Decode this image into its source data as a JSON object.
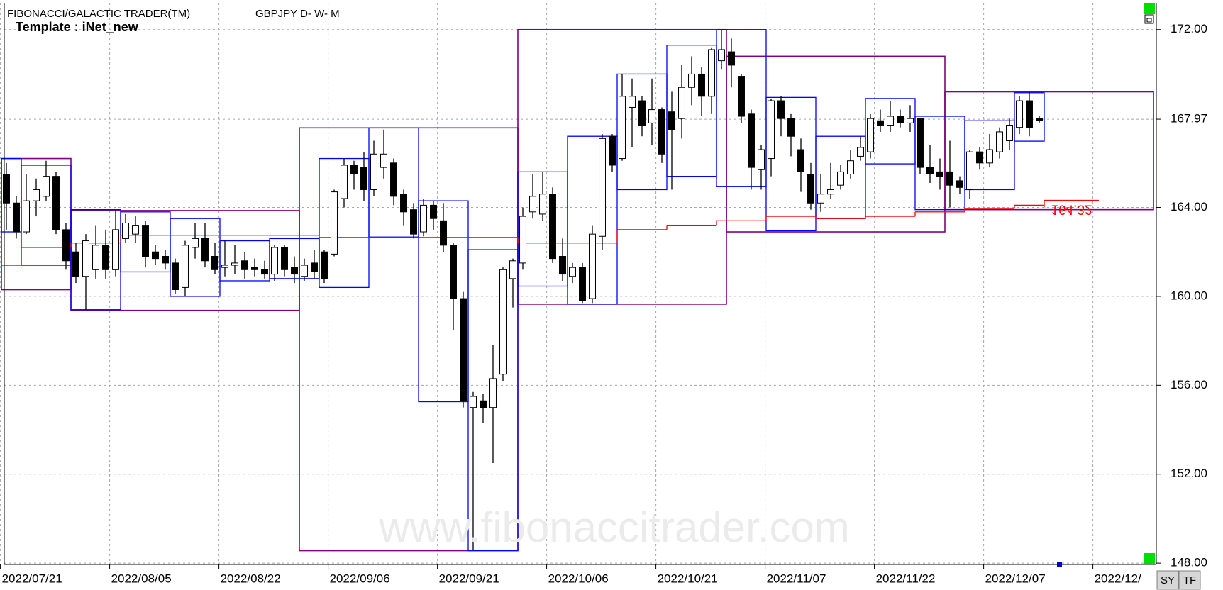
{
  "chart_data": {
    "type": "candlestick",
    "title": "FIBONACCI/GALACTIC TRADER(TM)",
    "subtitle": "GBPJPY D- W- M",
    "template_label": "Template : iNet_new",
    "watermark": "www.fibonaccitrader.com",
    "categories": [
      "2022/07/21",
      null,
      null,
      null,
      null,
      null,
      null,
      null,
      null,
      null,
      null,
      "2022/08/05",
      null,
      null,
      null,
      null,
      null,
      null,
      null,
      null,
      null,
      null,
      "2022/08/22",
      null,
      null,
      null,
      null,
      null,
      null,
      null,
      null,
      null,
      null,
      "2022/09/06",
      null,
      null,
      null,
      null,
      null,
      null,
      null,
      null,
      null,
      null,
      "2022/09/21",
      null,
      null,
      null,
      null,
      null,
      null,
      null,
      null,
      null,
      null,
      "2022/10/06",
      null,
      null,
      null,
      null,
      null,
      null,
      null,
      null,
      null,
      null,
      "2022/10/21",
      null,
      null,
      null,
      null,
      null,
      null,
      null,
      null,
      null,
      null,
      "2022/11/07",
      null,
      null,
      null,
      null,
      null,
      null,
      null,
      null,
      null,
      null,
      "2022/11/22",
      null,
      null,
      null,
      null,
      null,
      null,
      null,
      null,
      null,
      null,
      "2022/12/07",
      null,
      null,
      null,
      null,
      null,
      null,
      null,
      null,
      null,
      null,
      "2022/12/",
      null,
      null,
      null,
      null,
      null
    ],
    "open": [
      165.5,
      164.2,
      162.9,
      164.3,
      164.5,
      165.4,
      163.0,
      162.0,
      160.9,
      161.2,
      162.3,
      161.2,
      162.6,
      162.8,
      163.2,
      162.0,
      161.8,
      161.5,
      160.4,
      162.2,
      162.6,
      161.8,
      161.3,
      161.4,
      161.6,
      161.3,
      161.2,
      161.0,
      162.2,
      161.3,
      160.9,
      161.5,
      162.0,
      161.9,
      164.4,
      165.9,
      165.8,
      164.8,
      165.8,
      166.0,
      164.6,
      163.9,
      162.9,
      164.1,
      163.4,
      162.3,
      159.9,
      155.0,
      155.3,
      155.0,
      156.5,
      160.8,
      161.5,
      163.8,
      163.7,
      164.6,
      161.8,
      160.9,
      161.3,
      159.9,
      162.7,
      167.2,
      166.2,
      168.5,
      168.8,
      167.8,
      168.4,
      168.3,
      168.0,
      169.4,
      170.0,
      169.0,
      170.6,
      171.0,
      169.9,
      168.2,
      165.7,
      166.2,
      168.8,
      168.0,
      166.6,
      165.5,
      164.2,
      164.6,
      165.0,
      165.5,
      166.3,
      166.5,
      167.9,
      167.7,
      168.1,
      167.8,
      168.0,
      165.8,
      165.6,
      165.6,
      165.2,
      164.8,
      166.5,
      166.0,
      166.5,
      167.0,
      167.6,
      168.8,
      168.0,
      null,
      null,
      null,
      null,
      null,
      null,
      null,
      null,
      null,
      null,
      null
    ],
    "high": [
      166.0,
      164.5,
      165.5,
      165.3,
      166.1,
      165.6,
      163.3,
      162.4,
      162.8,
      163.2,
      163.0,
      163.9,
      163.7,
      163.6,
      163.4,
      162.3,
      162.1,
      161.7,
      162.5,
      163.3,
      163.3,
      162.4,
      162.5,
      162.3,
      162.0,
      161.7,
      161.6,
      162.3,
      162.3,
      161.8,
      161.7,
      162.1,
      162.1,
      164.8,
      166.2,
      166.1,
      166.5,
      167.0,
      167.5,
      166.2,
      164.8,
      164.2,
      164.4,
      164.3,
      164.2,
      162.4,
      160.2,
      155.7,
      155.6,
      157.8,
      161.3,
      161.7,
      164.0,
      165.5,
      165.6,
      164.9,
      162.6,
      161.5,
      161.5,
      163.2,
      167.3,
      167.3,
      170.0,
      169.8,
      169.0,
      169.8,
      168.5,
      169.2,
      170.4,
      170.8,
      170.3,
      171.2,
      172.0,
      171.6,
      170.0,
      168.4,
      166.8,
      168.9,
      169.0,
      168.2,
      167.1,
      166.0,
      165.5,
      166.0,
      165.9,
      166.6,
      167.2,
      168.2,
      168.4,
      168.8,
      168.4,
      168.6,
      168.0,
      166.8,
      166.2,
      167.0,
      165.4,
      166.6,
      166.7,
      167.3,
      167.6,
      168.0,
      169.0,
      169.2,
      168.1,
      null,
      null,
      null,
      null,
      null,
      null,
      null,
      null,
      null,
      null,
      null
    ],
    "low": [
      163.0,
      162.6,
      162.8,
      163.6,
      164.3,
      162.8,
      161.2,
      160.6,
      159.4,
      160.8,
      160.8,
      160.9,
      162.4,
      162.4,
      161.3,
      161.4,
      161.2,
      160.1,
      160.0,
      161.7,
      161.3,
      161.0,
      160.9,
      161.0,
      160.8,
      160.9,
      160.8,
      160.7,
      160.9,
      160.6,
      160.7,
      160.8,
      160.6,
      161.8,
      164.0,
      164.8,
      164.3,
      164.5,
      165.3,
      164.1,
      163.2,
      162.6,
      162.7,
      163.0,
      162.0,
      158.5,
      155.0,
      148.6,
      154.3,
      152.5,
      156.2,
      159.5,
      161.2,
      163.5,
      163.4,
      161.5,
      160.7,
      160.6,
      159.7,
      159.7,
      162.1,
      165.6,
      166.1,
      166.7,
      167.2,
      166.8,
      166.0,
      164.8,
      167.1,
      168.6,
      168.1,
      168.2,
      170.2,
      169.4,
      167.8,
      164.8,
      164.8,
      165.4,
      167.2,
      166.3,
      164.7,
      163.9,
      163.8,
      164.4,
      164.8,
      165.3,
      166.1,
      166.2,
      167.4,
      167.4,
      167.6,
      167.4,
      165.5,
      165.1,
      164.8,
      164.0,
      164.6,
      164.4,
      165.7,
      165.8,
      166.2,
      166.6,
      167.3,
      167.2,
      167.8,
      null,
      null,
      null,
      null,
      null,
      null,
      null,
      null,
      null,
      null,
      null
    ],
    "close": [
      164.2,
      162.9,
      164.3,
      164.8,
      165.4,
      163.0,
      161.6,
      160.9,
      162.5,
      162.3,
      161.2,
      163.0,
      163.3,
      163.2,
      161.8,
      161.7,
      161.5,
      160.3,
      162.3,
      162.6,
      161.6,
      161.2,
      161.4,
      161.5,
      161.2,
      161.2,
      161.0,
      162.2,
      161.2,
      161.0,
      161.4,
      161.1,
      160.8,
      164.7,
      165.9,
      165.5,
      164.8,
      166.4,
      166.4,
      164.5,
      163.8,
      162.8,
      164.1,
      163.5,
      162.3,
      159.9,
      155.3,
      155.5,
      155.0,
      156.3,
      161.2,
      161.6,
      163.6,
      164.5,
      164.6,
      161.7,
      161.0,
      161.3,
      159.8,
      162.8,
      167.1,
      165.9,
      169.0,
      169.0,
      167.7,
      168.4,
      166.4,
      167.5,
      169.4,
      170.0,
      169.0,
      171.1,
      171.1,
      170.4,
      168.1,
      165.8,
      166.6,
      168.8,
      168.0,
      167.2,
      165.6,
      164.2,
      164.6,
      164.8,
      165.6,
      166.1,
      166.7,
      168.0,
      167.7,
      168.1,
      167.8,
      168.0,
      165.8,
      165.5,
      165.4,
      165.0,
      164.9,
      166.5,
      166.0,
      166.6,
      167.4,
      167.7,
      168.8,
      167.6,
      167.9,
      null,
      null,
      null,
      null,
      null,
      null,
      null,
      null,
      null,
      null,
      null
    ],
    "up_color": "#ffffff",
    "down_color": "#000000",
    "monthly_boxes": {
      "color": "#800080",
      "ranges": [
        {
          "start": 0,
          "end": 6,
          "high": 166.2,
          "low": 160.3
        },
        {
          "start": 7,
          "end": 29,
          "high": 163.86,
          "low": 159.37
        },
        {
          "start": 30,
          "end": 51,
          "high": 167.58,
          "low": 148.56
        },
        {
          "start": 52,
          "end": 72,
          "high": 172.0,
          "low": 159.65
        },
        {
          "start": 73,
          "end": 94,
          "high": 170.8,
          "low": 162.9
        },
        {
          "start": 95,
          "end": 115,
          "high": 169.2,
          "low": 163.9
        }
      ]
    },
    "weekly_boxes": {
      "color": "#0000ff",
      "ranges": [
        {
          "start": 0,
          "end": 1,
          "high": 166.2,
          "low": 162.9
        },
        {
          "start": 2,
          "end": 6,
          "high": 165.9,
          "low": 161.4
        },
        {
          "start": 7,
          "end": 11,
          "high": 163.9,
          "low": 159.4
        },
        {
          "start": 12,
          "end": 16,
          "high": 163.8,
          "low": 161.1
        },
        {
          "start": 17,
          "end": 21,
          "high": 163.5,
          "low": 160.0
        },
        {
          "start": 22,
          "end": 26,
          "high": 162.5,
          "low": 160.7
        },
        {
          "start": 27,
          "end": 31,
          "high": 162.6,
          "low": 160.8
        },
        {
          "start": 32,
          "end": 36,
          "high": 166.2,
          "low": 160.4
        },
        {
          "start": 37,
          "end": 41,
          "high": 167.58,
          "low": 162.67
        },
        {
          "start": 42,
          "end": 46,
          "high": 164.3,
          "low": 155.26
        },
        {
          "start": 47,
          "end": 51,
          "high": 162.1,
          "low": 148.56
        },
        {
          "start": 52,
          "end": 56,
          "high": 165.6,
          "low": 160.46
        },
        {
          "start": 57,
          "end": 61,
          "high": 167.2,
          "low": 159.65
        },
        {
          "start": 62,
          "end": 66,
          "high": 170.0,
          "low": 164.8
        },
        {
          "start": 67,
          "end": 71,
          "high": 171.3,
          "low": 165.4
        },
        {
          "start": 72,
          "end": 76,
          "high": 172.0,
          "low": 164.95
        },
        {
          "start": 77,
          "end": 81,
          "high": 168.95,
          "low": 162.95
        },
        {
          "start": 82,
          "end": 86,
          "high": 167.2,
          "low": 163.5
        },
        {
          "start": 87,
          "end": 91,
          "high": 168.9,
          "low": 165.96
        },
        {
          "start": 92,
          "end": 96,
          "high": 168.1,
          "low": 163.9
        },
        {
          "start": 97,
          "end": 101,
          "high": 167.9,
          "low": 164.8
        },
        {
          "start": 102,
          "end": 104,
          "high": 169.16,
          "low": 166.98
        }
      ]
    },
    "level_line": {
      "color": "#ff0000",
      "values": [
        161.4,
        161.4,
        162.2,
        162.2,
        162.2,
        162.2,
        162.2,
        162.4,
        162.4,
        162.4,
        162.4,
        162.4,
        162.75,
        162.75,
        162.75,
        162.75,
        162.75,
        162.75,
        162.75,
        162.75,
        162.75,
        162.75,
        162.75,
        162.75,
        162.75,
        162.75,
        162.75,
        162.75,
        162.75,
        162.75,
        162.75,
        162.75,
        162.65,
        162.65,
        162.65,
        162.65,
        162.65,
        162.65,
        162.65,
        162.65,
        162.65,
        162.65,
        162.65,
        162.65,
        162.65,
        162.65,
        162.65,
        162.65,
        162.65,
        162.65,
        162.65,
        162.65,
        162.4,
        162.4,
        162.4,
        162.4,
        162.4,
        162.4,
        162.4,
        162.4,
        162.4,
        162.4,
        163.0,
        163.0,
        163.0,
        163.0,
        163.0,
        163.2,
        163.2,
        163.2,
        163.2,
        163.2,
        163.4,
        163.4,
        163.4,
        163.4,
        163.4,
        163.6,
        163.6,
        163.6,
        163.6,
        163.6,
        163.5,
        163.5,
        163.5,
        163.5,
        163.5,
        163.6,
        163.6,
        163.6,
        163.6,
        163.6,
        163.8,
        163.8,
        163.8,
        163.8,
        163.8,
        163.95,
        163.95,
        163.95,
        163.95,
        163.95,
        164.1,
        164.1,
        164.1,
        null,
        null,
        null,
        null,
        null,
        null,
        null,
        null,
        null,
        null,
        null
      ]
    },
    "last_value": {
      "value": 164.32,
      "label": "164.32"
    },
    "ylim": [
      147.94,
      173.14
    ],
    "yticks": [
      {
        "value": 148,
        "label": "148.00"
      },
      {
        "value": 152,
        "label": "152.00"
      },
      {
        "value": 156,
        "label": "156.00"
      },
      {
        "value": 160,
        "label": "160.00"
      },
      {
        "value": 164,
        "label": "164.00"
      },
      167.97,
      {
        "value": 172,
        "label": "172.00"
      }
    ],
    "grid": true
  },
  "toolbar": {
    "buttons": [
      "SY",
      "TF"
    ]
  }
}
